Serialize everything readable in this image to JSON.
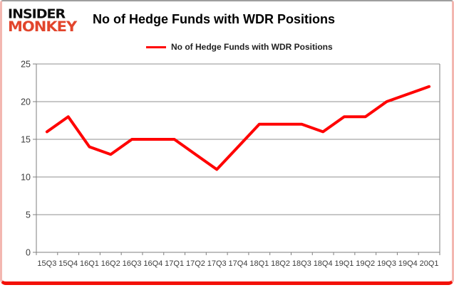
{
  "header": {
    "logo_line1": "INSIDER",
    "logo_line2": "MONKEY",
    "title": "No of Hedge Funds with WDR Positions"
  },
  "legend": {
    "label": "No of Hedge Funds with WDR Positions"
  },
  "chart_data": {
    "type": "line",
    "title": "No of Hedge Funds with WDR Positions",
    "categories": [
      "15Q3",
      "15Q4",
      "16Q1",
      "16Q2",
      "16Q3",
      "16Q4",
      "17Q1",
      "17Q2",
      "17Q3",
      "17Q4",
      "18Q1",
      "18Q2",
      "18Q3",
      "18Q4",
      "19Q1",
      "19Q2",
      "19Q3",
      "19Q4",
      "20Q1"
    ],
    "series": [
      {
        "name": "No of Hedge Funds with WDR Positions",
        "values": [
          16,
          18,
          14,
          13,
          15,
          15,
          15,
          13,
          11,
          14,
          17,
          17,
          17,
          16,
          18,
          18,
          20,
          21,
          22
        ],
        "color": "#ff0000"
      }
    ],
    "xlabel": "",
    "ylabel": "",
    "ylim": [
      0,
      25
    ],
    "y_ticks": [
      0,
      5,
      10,
      15,
      20,
      25
    ],
    "grid": true,
    "legend_position": "top",
    "colors": {
      "line": "#ff0000",
      "gridline": "#8f8f8f",
      "axis": "#7f7f7f",
      "tick_label": "#3c3c3c",
      "logo_accent": "#e2452c"
    }
  }
}
